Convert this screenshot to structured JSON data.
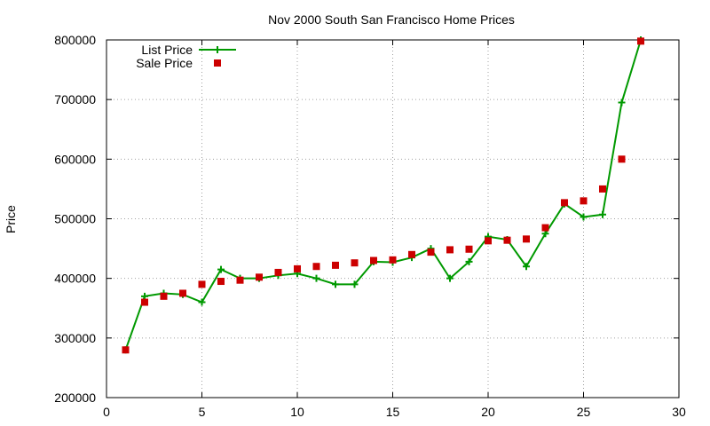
{
  "chart_data": {
    "type": "line",
    "title": "Nov 2000 South San Francisco Home Prices",
    "xlabel": "",
    "ylabel": "Price",
    "xlim": [
      0,
      30
    ],
    "ylim": [
      200000,
      800000
    ],
    "xticks": [
      0,
      5,
      10,
      15,
      20,
      25,
      30
    ],
    "yticks": [
      200000,
      300000,
      400000,
      500000,
      600000,
      700000,
      800000
    ],
    "xtick_labels": [
      "0",
      "5",
      "10",
      "15",
      "20",
      "25",
      "30"
    ],
    "ytick_labels": [
      "200000",
      "300000",
      "400000",
      "500000",
      "600000",
      "700000",
      "800000"
    ],
    "grid": true,
    "legend_position": "top-left",
    "x": [
      1,
      2,
      3,
      4,
      5,
      6,
      7,
      8,
      9,
      10,
      11,
      12,
      13,
      14,
      15,
      16,
      17,
      18,
      19,
      20,
      21,
      22,
      23,
      24,
      25,
      26,
      27,
      28
    ],
    "series": [
      {
        "name": "List Price",
        "style": "line-with-plus-markers",
        "color": "#009900",
        "values": [
          280000,
          370000,
          375000,
          373000,
          360000,
          415000,
          400000,
          400000,
          405000,
          408000,
          400000,
          390000,
          390000,
          428000,
          427000,
          435000,
          450000,
          400000,
          428000,
          470000,
          465000,
          420000,
          475000,
          525000,
          503000,
          507000,
          695000,
          800000
        ]
      },
      {
        "name": "Sale Price",
        "style": "square-markers",
        "color": "#cc0000",
        "values": [
          280000,
          360000,
          370000,
          375000,
          390000,
          395000,
          397000,
          402000,
          410000,
          416000,
          420000,
          422000,
          426000,
          430000,
          431000,
          440000,
          444000,
          448000,
          449000,
          463000,
          464000,
          466000,
          485000,
          527000,
          530000,
          550000,
          600000,
          798000
        ]
      }
    ]
  }
}
